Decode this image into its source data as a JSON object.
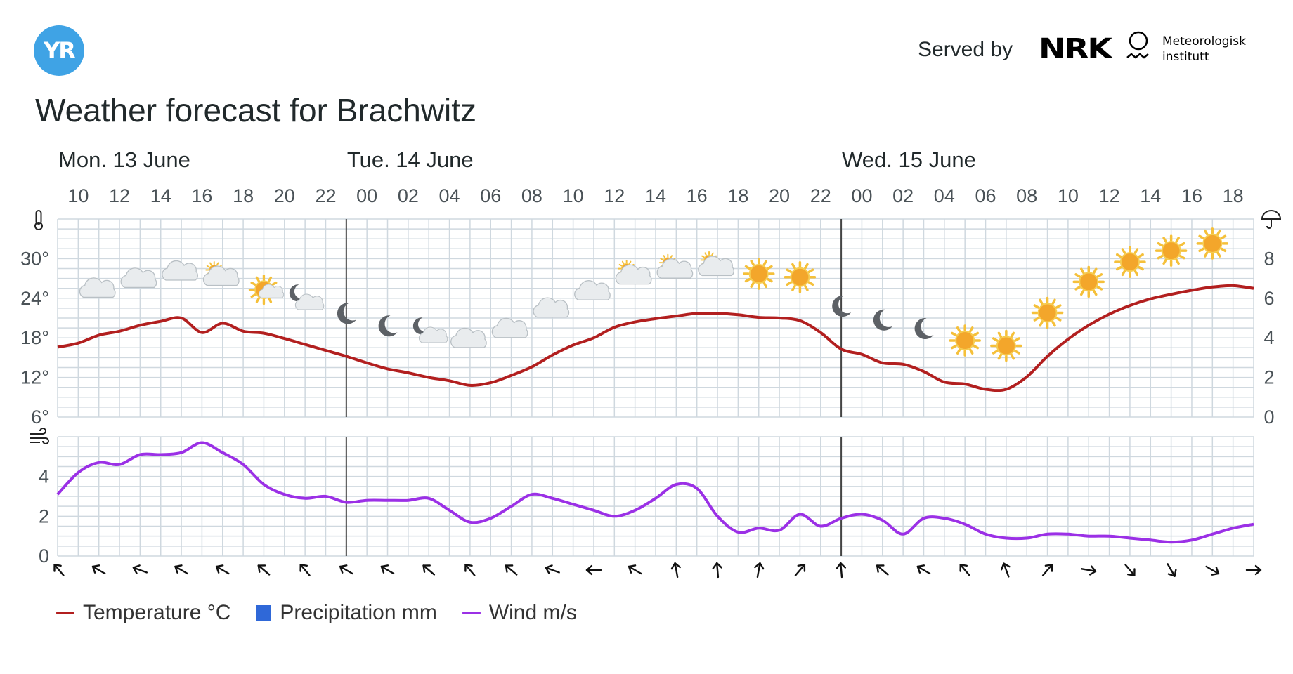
{
  "header": {
    "logo_text": "YR",
    "served_by": "Served by",
    "nrk_logo": "NRK",
    "met_line1": "Meteorologisk",
    "met_line2": "institutt"
  },
  "title": "Weather forecast for Brachwitz",
  "legend": {
    "items": [
      {
        "label": "Temperature °C",
        "color": "#b21f1f",
        "swatch": "line"
      },
      {
        "label": "Precipitation mm",
        "color": "#2f68d8",
        "swatch": "box"
      },
      {
        "label": "Wind m/s",
        "color": "#9b30e6",
        "swatch": "line"
      }
    ]
  },
  "chart_data": [
    {
      "type": "line",
      "name": "temperature",
      "days": [
        {
          "label": "Mon. 13 June",
          "start_hour_index": 0
        },
        {
          "label": "Tue. 14 June",
          "start_hour_index": 14
        },
        {
          "label": "Wed. 15 June",
          "start_hour_index": 38
        }
      ],
      "x_hours": [
        "10",
        "12",
        "14",
        "16",
        "18",
        "20",
        "22",
        "00",
        "02",
        "04",
        "06",
        "08",
        "10",
        "12",
        "14",
        "16",
        "18",
        "20",
        "22",
        "00",
        "02",
        "04",
        "06",
        "08",
        "10",
        "12",
        "14",
        "16",
        "18"
      ],
      "y_ticks": [
        "6°",
        "12°",
        "18°",
        "24°",
        "30°"
      ],
      "ylim": [
        6,
        36
      ],
      "y2_ticks": [
        "0",
        "2",
        "4",
        "6",
        "8"
      ],
      "y2lim": [
        0,
        10
      ],
      "series": [
        {
          "name": "Temperature °C",
          "color": "#b21f1f",
          "x": [
            0,
            1,
            2,
            3,
            4,
            5,
            6,
            7,
            8,
            9,
            10,
            11,
            12,
            13,
            14,
            15,
            16,
            17,
            18,
            19,
            20,
            21,
            22,
            23,
            24,
            25,
            26,
            27,
            28,
            29,
            30,
            31,
            32,
            33,
            34,
            35,
            36,
            37,
            38,
            39,
            40,
            41,
            42,
            43,
            44,
            45,
            46,
            47,
            48,
            49,
            50,
            51,
            52,
            53,
            54,
            55,
            56,
            57,
            58
          ],
          "values": [
            16.6,
            17.2,
            18.4,
            19.0,
            19.9,
            20.5,
            21.0,
            18.8,
            20.2,
            19.0,
            18.7,
            17.9,
            17.0,
            16.1,
            15.2,
            14.2,
            13.3,
            12.7,
            12.0,
            11.5,
            10.8,
            11.2,
            12.3,
            13.6,
            15.4,
            16.9,
            18.0,
            19.6,
            20.4,
            20.9,
            21.3,
            21.7,
            21.7,
            21.5,
            21.1,
            21.0,
            20.6,
            18.8,
            16.3,
            15.5,
            14.2,
            14.0,
            12.9,
            11.3,
            11.0,
            10.2,
            10.2,
            12.1,
            15.2,
            17.8,
            19.9,
            21.6,
            22.9,
            23.9,
            24.6,
            25.2,
            25.7,
            25.9,
            25.5
          ]
        },
        {
          "name": "Precipitation mm",
          "color": "#2f68d8",
          "values": []
        }
      ],
      "weather_icons": [
        "cloudy",
        "cloudy",
        "cloudy",
        "partly-cloudy",
        "partly-cloudy-sun",
        "partly-cloudy-night",
        "night",
        "night",
        "partly-cloudy-night",
        "cloudy",
        "cloudy",
        "cloudy",
        "cloudy",
        "partly-cloudy",
        "partly-cloudy",
        "partly-cloudy",
        "clear-sun",
        "clear-sun",
        "night",
        "night",
        "night",
        "clear-sun",
        "clear-sun",
        "clear-sun",
        "clear-sun",
        "clear-sun",
        "clear-sun",
        "clear-sun"
      ]
    },
    {
      "type": "line",
      "name": "wind",
      "y_ticks": [
        "0",
        "2",
        "4"
      ],
      "ylim": [
        0,
        6
      ],
      "series": [
        {
          "name": "Wind m/s",
          "color": "#9b30e6",
          "x": [
            0,
            1,
            2,
            3,
            4,
            5,
            6,
            7,
            8,
            9,
            10,
            11,
            12,
            13,
            14,
            15,
            16,
            17,
            18,
            19,
            20,
            21,
            22,
            23,
            24,
            25,
            26,
            27,
            28,
            29,
            30,
            31,
            32,
            33,
            34,
            35,
            36,
            37,
            38,
            39,
            40,
            41,
            42,
            43,
            44,
            45,
            46,
            47,
            48,
            49,
            50,
            51,
            52,
            53,
            54,
            55,
            56,
            57,
            58
          ],
          "values": [
            3.1,
            4.2,
            4.7,
            4.6,
            5.1,
            5.1,
            5.2,
            5.7,
            5.2,
            4.6,
            3.6,
            3.1,
            2.9,
            3.0,
            2.7,
            2.8,
            2.8,
            2.8,
            2.9,
            2.3,
            1.7,
            1.9,
            2.5,
            3.1,
            2.9,
            2.6,
            2.3,
            2.0,
            2.3,
            2.9,
            3.6,
            3.4,
            2.0,
            1.2,
            1.4,
            1.3,
            2.1,
            1.5,
            1.9,
            2.1,
            1.8,
            1.1,
            1.9,
            1.9,
            1.6,
            1.1,
            0.9,
            0.9,
            1.1,
            1.1,
            1.0,
            1.0,
            0.9,
            0.8,
            0.7,
            0.8,
            1.1,
            1.4,
            1.6
          ]
        }
      ],
      "wind_directions_deg": [
        320,
        300,
        290,
        300,
        300,
        310,
        320,
        300,
        300,
        310,
        320,
        310,
        290,
        270,
        300,
        350,
        355,
        10,
        40,
        355,
        310,
        300,
        320,
        340,
        40,
        100,
        140,
        150,
        120,
        90
      ]
    }
  ]
}
